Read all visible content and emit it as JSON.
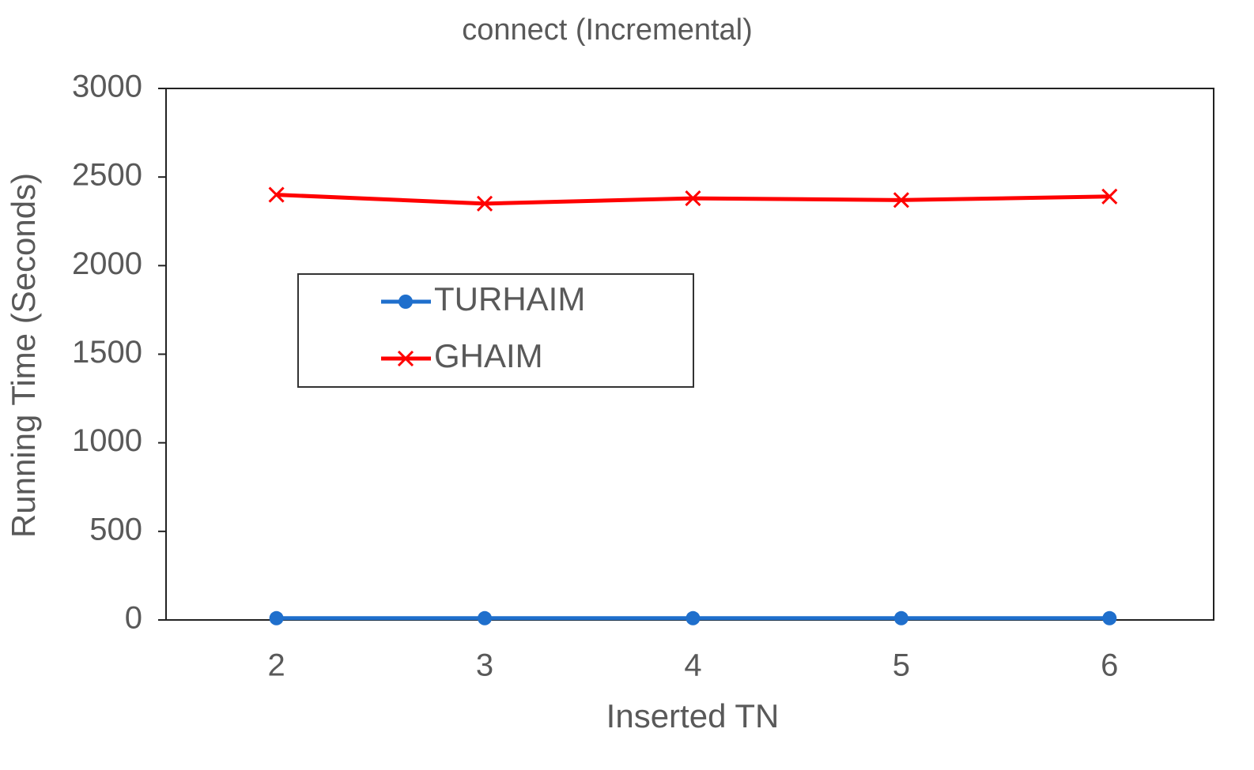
{
  "chart_data": {
    "type": "line",
    "title": "connect (Incremental)",
    "xlabel": "Inserted TN",
    "ylabel": "Running Time (Seconds)",
    "x": [
      2,
      3,
      4,
      5,
      6
    ],
    "series": [
      {
        "name": "TURHAIM",
        "color": "#1f6fcc",
        "marker": "circle",
        "values": [
          10,
          10,
          10,
          10,
          10
        ]
      },
      {
        "name": "GHAIM",
        "color": "#ff0000",
        "marker": "x",
        "values": [
          2400,
          2350,
          2380,
          2370,
          2390
        ]
      }
    ],
    "xlim": [
      1.47,
      6.5
    ],
    "xticks": [
      2,
      3,
      4,
      5,
      6
    ],
    "ylim": [
      0,
      3000
    ],
    "yticks": [
      0,
      500,
      1000,
      1500,
      2000,
      2500,
      3000
    ],
    "grid": false,
    "legend": "upper left"
  }
}
